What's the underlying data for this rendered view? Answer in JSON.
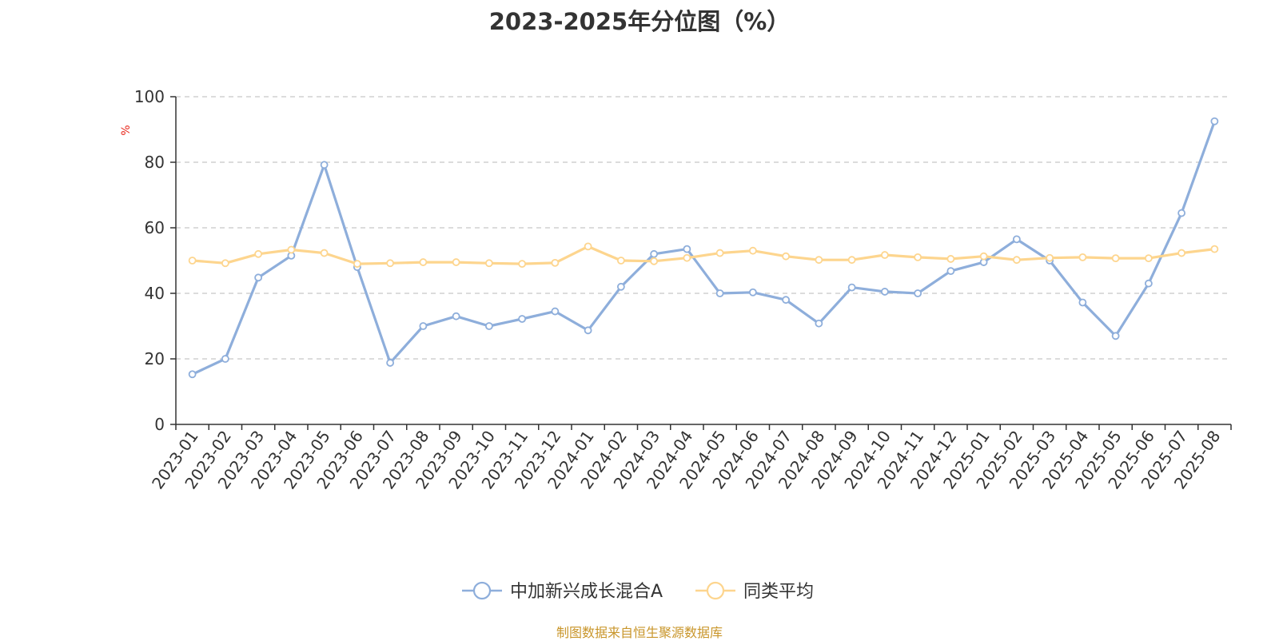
{
  "title": "2023-2025年分位图（%）",
  "source_note": "制图数据来自恒生聚源数据库",
  "colors": {
    "series_fund": "#8eaedb",
    "series_avg": "#fdd58e",
    "ylabel": "#e8271b",
    "source_note": "#c9962b",
    "grid": "#c8c8c8",
    "axis": "#333333"
  },
  "chart_data": {
    "type": "line",
    "title": "2023-2025年分位图（%）",
    "xlabel": "",
    "ylabel": "%",
    "ylim": [
      0,
      100
    ],
    "yticks": [
      0,
      20,
      40,
      60,
      80,
      100
    ],
    "grid": true,
    "legend_position": "bottom-center",
    "categories": [
      "2023-01",
      "2023-02",
      "2023-03",
      "2023-04",
      "2023-05",
      "2023-06",
      "2023-07",
      "2023-08",
      "2023-09",
      "2023-10",
      "2023-11",
      "2023-12",
      "2024-01",
      "2024-02",
      "2024-03",
      "2024-04",
      "2024-05",
      "2024-06",
      "2024-07",
      "2024-08",
      "2024-09",
      "2024-10",
      "2024-11",
      "2024-12",
      "2025-01",
      "2025-02",
      "2025-03",
      "2025-04",
      "2025-05",
      "2025-06",
      "2025-07",
      "2025-08"
    ],
    "series": [
      {
        "name": "中加新兴成长混合A",
        "color": "#8eaedb",
        "values": [
          15.3,
          20.0,
          44.8,
          51.5,
          79.2,
          48.0,
          18.8,
          30.0,
          33.0,
          30.0,
          32.2,
          34.5,
          28.7,
          42.0,
          52.0,
          53.5,
          40.0,
          40.3,
          38.0,
          30.8,
          41.8,
          40.5,
          40.0,
          46.8,
          49.5,
          56.5,
          50.0,
          37.2,
          27.0,
          43.0,
          64.5,
          92.5
        ]
      },
      {
        "name": "同类平均",
        "color": "#fdd58e",
        "values": [
          50.0,
          49.2,
          52.0,
          53.3,
          52.3,
          49.0,
          49.2,
          49.5,
          49.5,
          49.2,
          49.0,
          49.3,
          54.3,
          50.0,
          49.8,
          50.8,
          52.3,
          53.0,
          51.3,
          50.2,
          50.2,
          51.7,
          51.0,
          50.5,
          51.3,
          50.2,
          50.8,
          51.0,
          50.7,
          50.7,
          52.3,
          53.5
        ]
      }
    ]
  }
}
